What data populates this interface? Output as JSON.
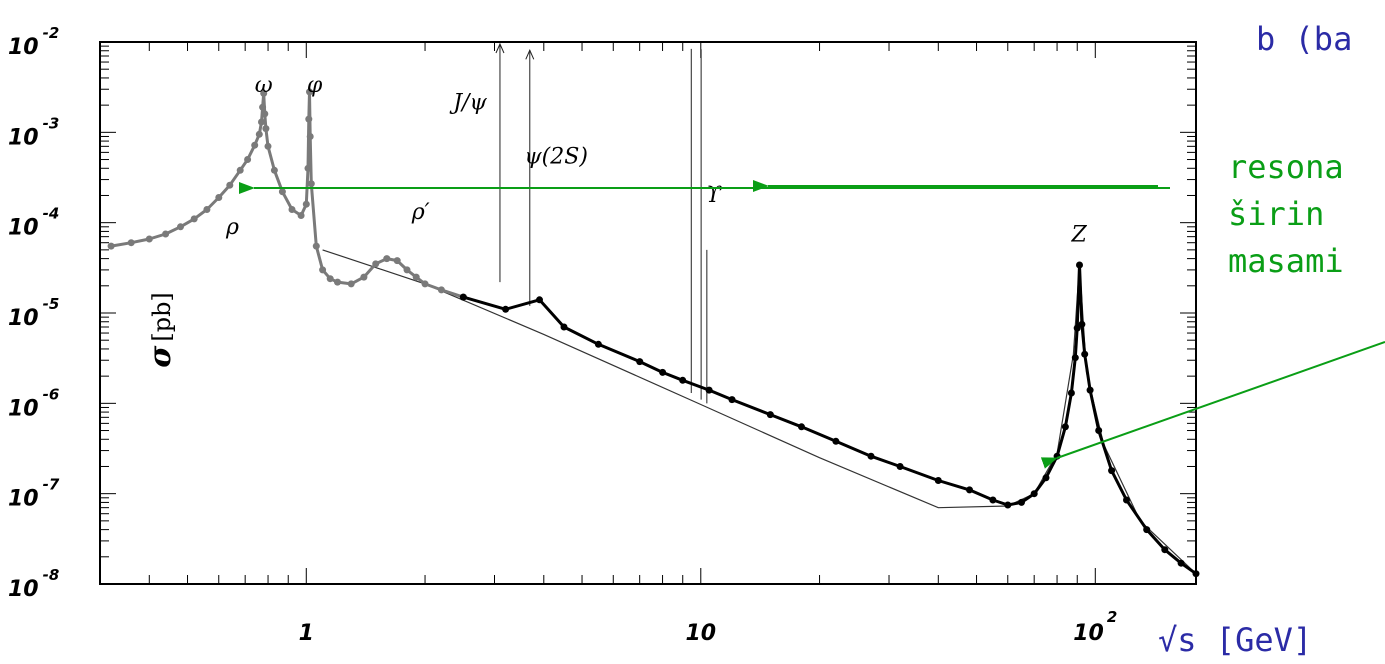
{
  "chart_data": {
    "type": "scatter",
    "scale": {
      "x": "log",
      "y": "log"
    },
    "xlim": [
      0.3,
      180
    ],
    "ylim": [
      1e-08,
      0.01
    ],
    "y_unit_label": "[pb]",
    "y_symbol": "σ",
    "x_ticks": [
      {
        "value": 1,
        "label": "1"
      },
      {
        "value": 10,
        "label": "10"
      },
      {
        "value": 100,
        "base": "10",
        "exp": "2"
      }
    ],
    "y_ticks": [
      {
        "value": 0.01,
        "base": "10",
        "exp": "-2"
      },
      {
        "value": 0.001,
        "base": "10",
        "exp": "-3"
      },
      {
        "value": 0.0001,
        "base": "10",
        "exp": "-4"
      },
      {
        "value": 1e-05,
        "base": "10",
        "exp": "-5"
      },
      {
        "value": 1e-06,
        "base": "10",
        "exp": "-6"
      },
      {
        "value": 1e-07,
        "base": "10",
        "exp": "-7"
      },
      {
        "value": 1e-08,
        "base": "10",
        "exp": "-8"
      }
    ],
    "peak_labels": [
      {
        "text": "ω",
        "x": 0.78,
        "y": 0.0028
      },
      {
        "text": "φ",
        "x": 1.05,
        "y": 0.0028
      },
      {
        "text": "J/ψ",
        "x": 2.6,
        "y": 0.0018
      },
      {
        "text": "ψ(2S)",
        "x": 4.3,
        "y": 0.00045
      },
      {
        "text": "ϒ",
        "x": 10.8,
        "y": 0.00017
      },
      {
        "text": "ρ",
        "x": 0.65,
        "y": 7.5e-05
      },
      {
        "text": "ρ′",
        "x": 1.95,
        "y": 0.00011
      },
      {
        "text": "Z",
        "x": 91,
        "y": 6.2e-05
      }
    ],
    "spikes": [
      {
        "name": "J/psi",
        "x": 3.097,
        "ymin": 2.2e-05,
        "ymax": 0.0095,
        "arrow": true
      },
      {
        "name": "psi2S",
        "x": 3.686,
        "ymin": 1.2e-05,
        "ymax": 0.0081,
        "arrow": true
      },
      {
        "name": "Y1S",
        "x": 9.46,
        "ymin": 1.3e-06,
        "ymax": 0.0084,
        "arrow": false
      },
      {
        "name": "Y2S",
        "x": 10.02,
        "ymin": 1.1e-06,
        "ymax": 0.0083,
        "arrow": false
      },
      {
        "name": "Y3S",
        "x": 10.36,
        "ymin": 1e-06,
        "ymax": 5e-05,
        "arrow": false
      }
    ],
    "series": [
      {
        "name": "low-energy",
        "color": "#7a7a7a",
        "x": [
          0.32,
          0.36,
          0.4,
          0.44,
          0.48,
          0.52,
          0.56,
          0.6,
          0.64,
          0.68,
          0.71,
          0.74,
          0.76,
          0.77,
          0.775,
          0.78,
          0.785,
          0.79,
          0.8,
          0.83,
          0.87,
          0.92,
          0.97,
          1.0,
          1.01,
          1.015,
          1.019,
          1.023,
          1.03,
          1.06,
          1.1,
          1.15,
          1.2,
          1.3,
          1.4,
          1.5,
          1.6,
          1.7,
          1.8,
          1.9,
          2.0,
          2.2,
          2.5
        ],
        "y": [
          5.5e-05,
          6e-05,
          6.6e-05,
          7.5e-05,
          9e-05,
          0.00011,
          0.00014,
          0.00019,
          0.00026,
          0.00038,
          0.0005,
          0.00072,
          0.00095,
          0.0013,
          0.0019,
          0.0027,
          0.0016,
          0.0011,
          0.0007,
          0.00038,
          0.00022,
          0.00014,
          0.00012,
          0.00016,
          0.0004,
          0.0014,
          0.0028,
          0.0009,
          0.00027,
          5.5e-05,
          3e-05,
          2.4e-05,
          2.2e-05,
          2.1e-05,
          2.5e-05,
          3.5e-05,
          4e-05,
          3.8e-05,
          3e-05,
          2.5e-05,
          2.1e-05,
          1.8e-05,
          1.5e-05
        ]
      },
      {
        "name": "continuum",
        "color": "#000000",
        "x": [
          2.5,
          3.2,
          3.9,
          4.5,
          5.5,
          7,
          8,
          9,
          10.5,
          12,
          15,
          18,
          22,
          27,
          32,
          40,
          48,
          55,
          60,
          65,
          70,
          75,
          80,
          84,
          87,
          89,
          90,
          91.2,
          92.5,
          94,
          97,
          102,
          110,
          120,
          135,
          150,
          165,
          180
        ],
        "y": [
          1.5e-05,
          1.1e-05,
          1.4e-05,
          7e-06,
          4.5e-06,
          2.9e-06,
          2.2e-06,
          1.8e-06,
          1.4e-06,
          1.1e-06,
          7.5e-07,
          5.5e-07,
          3.8e-07,
          2.6e-07,
          2e-07,
          1.4e-07,
          1.1e-07,
          8.5e-08,
          7.5e-08,
          8e-08,
          1e-07,
          1.5e-07,
          2.6e-07,
          5.5e-07,
          1.3e-06,
          3.2e-06,
          6.8e-06,
          3.4e-05,
          7.5e-06,
          3.5e-06,
          1.4e-06,
          5e-07,
          1.8e-07,
          8.5e-08,
          4e-08,
          2.4e-08,
          1.7e-08,
          1.3e-08
        ]
      }
    ],
    "fit_curve": {
      "x": [
        1.1,
        2,
        4,
        10,
        20,
        40,
        60,
        70,
        80,
        88,
        91.2,
        95,
        105,
        130,
        180
      ],
      "y": [
        5e-05,
        2.1e-05,
        5.8e-06,
        9.7e-07,
        2.5e-07,
        7e-08,
        7.3e-08,
        1e-07,
        2.8e-07,
        3.5e-06,
        3.5e-05,
        2.2e-06,
        3.5e-07,
        5e-08,
        1.3e-08
      ]
    }
  },
  "annotations": {
    "line1": "b (ba",
    "resonance_line1": "resona",
    "resonance_line2": "širin",
    "resonance_line3": "masami",
    "x_axis_label": "√s [GeV]",
    "colors": {
      "blue": "#2b2ba6",
      "green": "#0a9e16"
    }
  }
}
